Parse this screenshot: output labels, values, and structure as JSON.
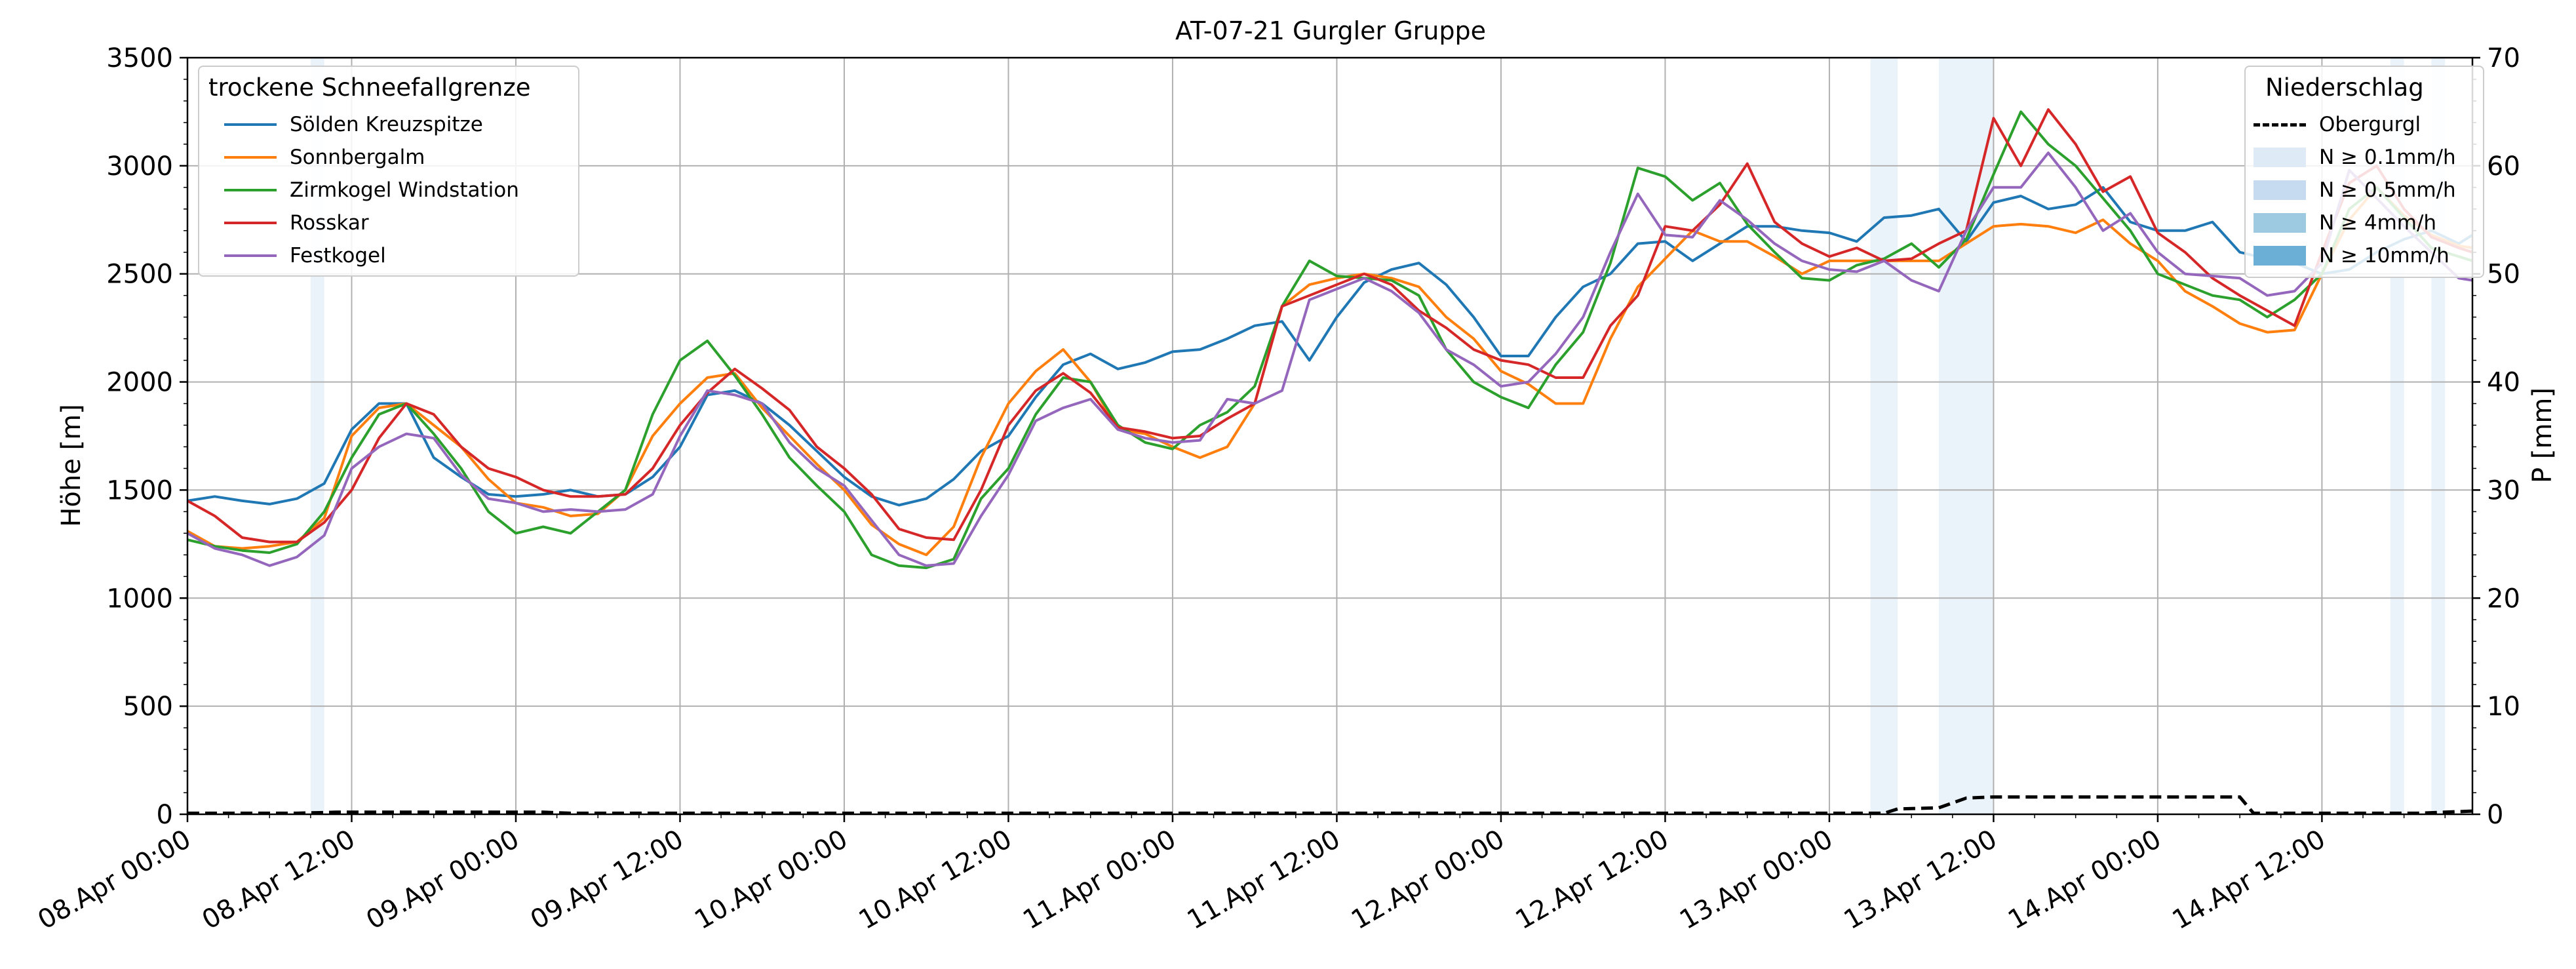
{
  "chart_data": {
    "type": "line",
    "title": "AT-07-21 Gurgler Gruppe",
    "ylabel": "Höhe [m]",
    "y2label": "P [mm]",
    "ylim": [
      0,
      3500
    ],
    "y2lim": [
      0,
      70
    ],
    "yticks": [
      0,
      500,
      1000,
      1500,
      2000,
      2500,
      3000,
      3500
    ],
    "y2ticks": [
      0,
      10,
      20,
      30,
      40,
      50,
      60,
      70
    ],
    "xrange_hours": [
      0,
      167
    ],
    "xtick_hours": [
      0,
      12,
      24,
      36,
      48,
      60,
      72,
      84,
      96,
      108,
      120,
      132,
      144,
      156
    ],
    "xtick_labels": [
      "08.Apr 00:00",
      "08.Apr 12:00",
      "09.Apr 00:00",
      "09.Apr 12:00",
      "10.Apr 00:00",
      "10.Apr 12:00",
      "11.Apr 00:00",
      "11.Apr 12:00",
      "12.Apr 00:00",
      "12.Apr 12:00",
      "13.Apr 00:00",
      "13.Apr 12:00",
      "14.Apr 00:00",
      "14.Apr 12:00"
    ],
    "grid": true,
    "legend_snowline": {
      "title": "trockene Schneefallgrenze",
      "placement": "top-left"
    },
    "legend_precip": {
      "title": "Niederschlag",
      "placement": "top-right",
      "entries": [
        {
          "label": "Obergurgl",
          "style": "dashed",
          "color": "#000000"
        },
        {
          "label": "N ≥ 0.1mm/h",
          "color": "#deebf7"
        },
        {
          "label": "N ≥ 0.5mm/h",
          "color": "#c6dbef"
        },
        {
          "label": "N ≥ 4mm/h",
          "color": "#9ecae1"
        },
        {
          "label": "N ≥ 10mm/h",
          "color": "#6baed6"
        }
      ]
    },
    "precip_bands": [
      [
        9,
        10
      ],
      [
        123,
        125
      ],
      [
        128,
        132
      ],
      [
        161,
        162
      ],
      [
        164,
        165
      ]
    ],
    "precip_series": {
      "name": "Obergurgl",
      "points": [
        [
          0,
          0.1
        ],
        [
          8,
          0.1
        ],
        [
          11,
          0.2
        ],
        [
          20,
          0.2
        ],
        [
          26,
          0.2
        ],
        [
          28,
          0.1
        ],
        [
          124,
          0.1
        ],
        [
          125,
          0.5
        ],
        [
          128,
          0.6
        ],
        [
          130,
          1.5
        ],
        [
          132,
          1.6
        ],
        [
          150,
          1.6
        ],
        [
          151,
          0.1
        ],
        [
          163,
          0.1
        ],
        [
          167,
          0.3
        ]
      ]
    },
    "x": [
      0,
      2,
      4,
      6,
      8,
      10,
      12,
      14,
      16,
      18,
      20,
      22,
      24,
      26,
      28,
      30,
      32,
      34,
      36,
      38,
      40,
      42,
      44,
      46,
      48,
      50,
      52,
      54,
      56,
      58,
      60,
      62,
      64,
      66,
      68,
      70,
      72,
      74,
      76,
      78,
      80,
      82,
      84,
      86,
      88,
      90,
      92,
      94,
      96,
      98,
      100,
      102,
      104,
      106,
      108,
      110,
      112,
      114,
      116,
      118,
      120,
      122,
      124,
      126,
      128,
      130,
      132,
      134,
      136,
      138,
      140,
      142,
      144,
      146,
      148,
      150,
      152,
      154,
      156,
      158,
      160,
      162,
      164,
      166,
      167
    ],
    "series": [
      {
        "name": "Sölden Kreuzspitze",
        "color": "#1f77b4",
        "values": [
          1450,
          1470,
          1450,
          1435,
          1460,
          1530,
          1780,
          1900,
          1900,
          1650,
          1560,
          1480,
          1470,
          1480,
          1500,
          1470,
          1480,
          1560,
          1700,
          1940,
          1960,
          1900,
          1800,
          1680,
          1560,
          1470,
          1430,
          1460,
          1550,
          1680,
          1750,
          1930,
          2080,
          2130,
          2060,
          2090,
          2140,
          2150,
          2200,
          2260,
          2280,
          2100,
          2300,
          2460,
          2520,
          2550,
          2450,
          2300,
          2120,
          2120,
          2300,
          2440,
          2500,
          2640,
          2650,
          2560,
          2640,
          2720,
          2720,
          2700,
          2690,
          2650,
          2760,
          2770,
          2800,
          2650,
          2830,
          2860,
          2800,
          2820,
          2900,
          2740,
          2700,
          2700,
          2740,
          2600,
          2570,
          2550,
          2500,
          2520,
          2600,
          2660,
          2700,
          2640,
          2680
        ]
      },
      {
        "name": "Sonnbergalm",
        "color": "#ff7f0e",
        "values": [
          1310,
          1240,
          1230,
          1240,
          1260,
          1370,
          1750,
          1880,
          1900,
          1800,
          1700,
          1550,
          1440,
          1420,
          1380,
          1390,
          1500,
          1750,
          1900,
          2020,
          2040,
          1880,
          1750,
          1620,
          1500,
          1340,
          1250,
          1200,
          1330,
          1650,
          1900,
          2050,
          2150,
          2000,
          1780,
          1760,
          1700,
          1650,
          1700,
          1900,
          2350,
          2450,
          2480,
          2500,
          2480,
          2440,
          2300,
          2200,
          2050,
          1990,
          1900,
          1900,
          2200,
          2440,
          2570,
          2700,
          2650,
          2650,
          2580,
          2500,
          2560,
          2560,
          2560,
          2560,
          2560,
          2640,
          2720,
          2730,
          2720,
          2690,
          2750,
          2640,
          2560,
          2420,
          2350,
          2270,
          2230,
          2240,
          2500,
          2750,
          2900,
          2770,
          2680,
          2630,
          2620
        ]
      },
      {
        "name": "Zirmkogel Windstation",
        "color": "#2ca02c",
        "values": [
          1270,
          1240,
          1220,
          1210,
          1250,
          1400,
          1650,
          1850,
          1900,
          1760,
          1600,
          1400,
          1300,
          1330,
          1300,
          1400,
          1500,
          1850,
          2100,
          2190,
          2030,
          1850,
          1650,
          1520,
          1400,
          1200,
          1150,
          1140,
          1180,
          1460,
          1600,
          1850,
          2020,
          2000,
          1800,
          1720,
          1690,
          1800,
          1860,
          1980,
          2350,
          2560,
          2490,
          2480,
          2470,
          2400,
          2150,
          2000,
          1930,
          1880,
          2080,
          2230,
          2550,
          2990,
          2950,
          2840,
          2920,
          2730,
          2600,
          2480,
          2470,
          2540,
          2570,
          2640,
          2530,
          2660,
          2960,
          3250,
          3100,
          3000,
          2850,
          2700,
          2500,
          2450,
          2400,
          2380,
          2300,
          2380,
          2500,
          2800,
          2900,
          2760,
          2620,
          2580,
          2560
        ]
      },
      {
        "name": "Rosskar",
        "color": "#d62728",
        "values": [
          1450,
          1380,
          1280,
          1260,
          1260,
          1350,
          1500,
          1740,
          1900,
          1850,
          1700,
          1600,
          1560,
          1500,
          1470,
          1470,
          1480,
          1600,
          1800,
          1950,
          2060,
          1970,
          1870,
          1700,
          1600,
          1480,
          1320,
          1280,
          1270,
          1500,
          1800,
          1960,
          2040,
          1950,
          1790,
          1770,
          1740,
          1750,
          1830,
          1900,
          2350,
          2400,
          2450,
          2500,
          2450,
          2330,
          2250,
          2150,
          2100,
          2080,
          2020,
          2020,
          2260,
          2400,
          2720,
          2700,
          2820,
          3010,
          2740,
          2640,
          2580,
          2620,
          2560,
          2570,
          2640,
          2700,
          3220,
          3000,
          3260,
          3100,
          2880,
          2950,
          2690,
          2600,
          2480,
          2400,
          2330,
          2260,
          2600,
          2920,
          3000,
          2800,
          2670,
          2620,
          2600
        ]
      },
      {
        "name": "Festkogel",
        "color": "#9467bd",
        "values": [
          1300,
          1230,
          1200,
          1150,
          1190,
          1290,
          1600,
          1700,
          1760,
          1740,
          1570,
          1460,
          1440,
          1400,
          1410,
          1400,
          1410,
          1480,
          1750,
          1960,
          1940,
          1900,
          1720,
          1600,
          1520,
          1360,
          1200,
          1150,
          1160,
          1380,
          1570,
          1820,
          1880,
          1920,
          1780,
          1740,
          1720,
          1730,
          1920,
          1900,
          1960,
          2380,
          2430,
          2480,
          2420,
          2320,
          2150,
          2080,
          1980,
          2000,
          2130,
          2300,
          2600,
          2870,
          2680,
          2670,
          2840,
          2750,
          2640,
          2560,
          2520,
          2510,
          2560,
          2470,
          2420,
          2700,
          2900,
          2900,
          3060,
          2900,
          2700,
          2780,
          2600,
          2500,
          2490,
          2480,
          2400,
          2420,
          2550,
          2980,
          2850,
          2720,
          2600,
          2480,
          2470
        ]
      }
    ]
  }
}
